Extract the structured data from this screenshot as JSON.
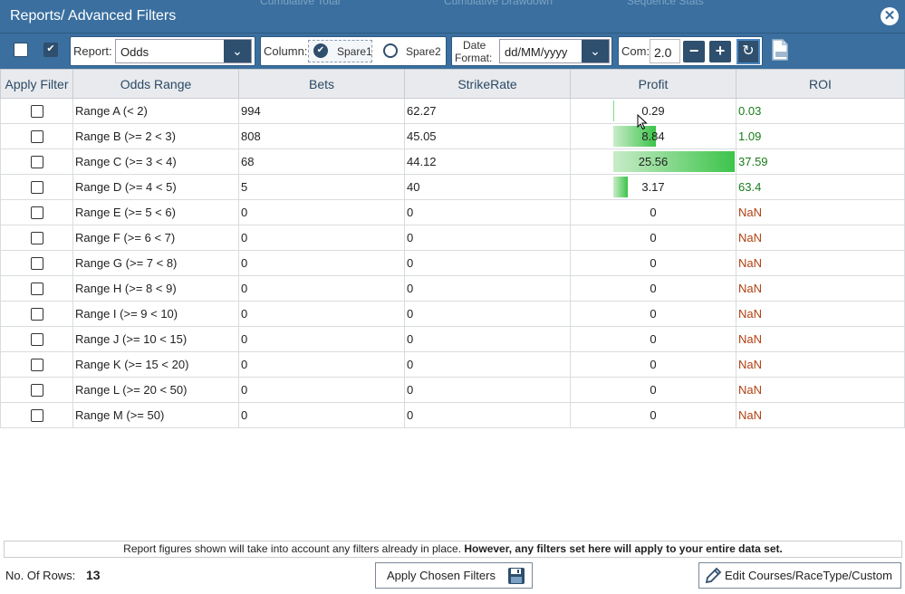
{
  "window": {
    "title": "Reports/ Advanced Filters"
  },
  "background_fragments": [
    "Cumulative Total",
    "Cumulative Drawdown",
    "Sequence Stats"
  ],
  "toolbar": {
    "report_label": "Report:",
    "report_value": "Odds",
    "column_label": "Column:",
    "column_option1": "Spare1",
    "column_option2": "Spare2",
    "date_label_line1": "Date",
    "date_label_line2": "Format:",
    "date_value": "dd/MM/yyyy",
    "com_label": "Com:",
    "com_value": "2.0"
  },
  "table": {
    "headers": [
      "Apply Filter",
      "Odds Range",
      "Bets",
      "StrikeRate",
      "Profit",
      "ROI"
    ],
    "rows": [
      {
        "range": "Range A  (< 2)",
        "bets": "994",
        "strike": "62.27",
        "profit": "0.29",
        "roi": "0.03",
        "bar": 0.01
      },
      {
        "range": "Range B  (>= 2 < 3)",
        "bets": "808",
        "strike": "45.05",
        "profit": "8.84",
        "roi": "1.09",
        "bar": 0.35
      },
      {
        "range": "Range C  (>= 3 < 4)",
        "bets": "68",
        "strike": "44.12",
        "profit": "25.56",
        "roi": "37.59",
        "bar": 1.0
      },
      {
        "range": "Range D  (>= 4 < 5)",
        "bets": "5",
        "strike": "40",
        "profit": "3.17",
        "roi": "63.4",
        "bar": 0.12
      },
      {
        "range": "Range E  (>= 5 < 6)",
        "bets": "0",
        "strike": "0",
        "profit": "0",
        "roi": "NaN",
        "bar": 0
      },
      {
        "range": "Range F  (>= 6 < 7)",
        "bets": "0",
        "strike": "0",
        "profit": "0",
        "roi": "NaN",
        "bar": 0
      },
      {
        "range": "Range G  (>= 7 < 8)",
        "bets": "0",
        "strike": "0",
        "profit": "0",
        "roi": "NaN",
        "bar": 0
      },
      {
        "range": "Range H  (>= 8 < 9)",
        "bets": "0",
        "strike": "0",
        "profit": "0",
        "roi": "NaN",
        "bar": 0
      },
      {
        "range": "Range I  (>= 9 < 10)",
        "bets": "0",
        "strike": "0",
        "profit": "0",
        "roi": "NaN",
        "bar": 0
      },
      {
        "range": "Range J  (>= 10 < 15)",
        "bets": "0",
        "strike": "0",
        "profit": "0",
        "roi": "NaN",
        "bar": 0
      },
      {
        "range": "Range K  (>= 15 < 20)",
        "bets": "0",
        "strike": "0",
        "profit": "0",
        "roi": "NaN",
        "bar": 0
      },
      {
        "range": "Range L  (>= 20 < 50)",
        "bets": "0",
        "strike": "0",
        "profit": "0",
        "roi": "NaN",
        "bar": 0
      },
      {
        "range": "Range M  (>= 50)",
        "bets": "0",
        "strike": "0",
        "profit": "0",
        "roi": "NaN",
        "bar": 0
      }
    ]
  },
  "footer": {
    "notice_normal": "Report figures shown will take into account any filters already in place. ",
    "notice_bold": "However, any filters set here will apply to your entire data set.",
    "rows_label": "No. Of Rows:",
    "rows_count": "13",
    "apply_button": "Apply Chosen Filters",
    "edit_button": "Edit Courses/RaceType/Custom"
  },
  "colors": {
    "titlebar": "#3a6f9f",
    "button_dark": "#2e4f6d",
    "profit_bar": "#3cc44a",
    "roi_positive": "#1a7a1a",
    "roi_nan": "#b04010"
  }
}
